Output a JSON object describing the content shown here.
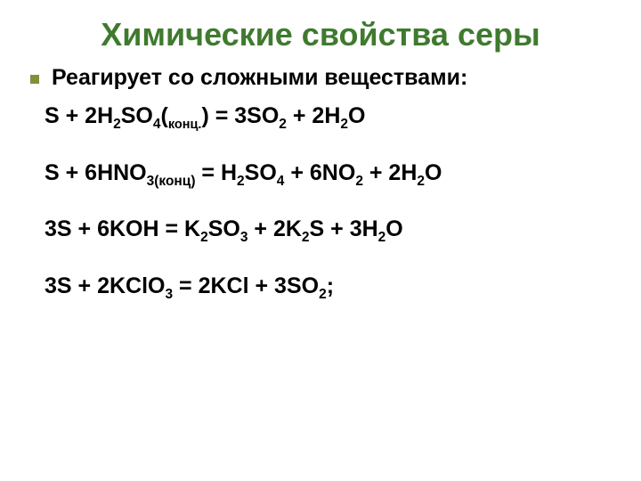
{
  "title": {
    "text": "Химические свойства серы",
    "color": "#3f7a2f",
    "fontsize": 36
  },
  "bullet": {
    "text": "Реагирует со сложными веществами:",
    "color": "#000000",
    "fontsize": 25,
    "marker_color": "#868e3a"
  },
  "equations": {
    "color": "#000000",
    "fontsize": 25,
    "eq1": {
      "p1": "S +   2H",
      "s1": "2",
      "p2": "SO",
      "s2": "4",
      "p3": "(",
      "note1": "конц.",
      "p4": ") = 3SO",
      "s3": "2",
      "p5": "   +  2H",
      "s4": "2",
      "p6": "O"
    },
    "eq2": {
      "p1": "S +  6HNO",
      "s1": "3(конц)",
      "p2": " = H",
      "s2": "2",
      "p3": "SO",
      "s3": "4",
      "p4": "  +  6NO",
      "s4": "2",
      "p5": " +  2H",
      "s5": "2",
      "p6": "O"
    },
    "eq3": {
      "p1": "3S +   6KOH  =  K",
      "s1": "2",
      "p2": "SO",
      "s2": "3",
      "p3": "  +  2K",
      "s3": "2",
      "p4": "S +  3H",
      "s4": "2",
      "p5": "O"
    },
    "eq4": {
      "p1": "3S  +  2KClO",
      "s1": "3",
      "p2": "  =  2KCl  + 3SO",
      "s2": "2",
      "p3": ";"
    }
  },
  "background_color": "#ffffff"
}
